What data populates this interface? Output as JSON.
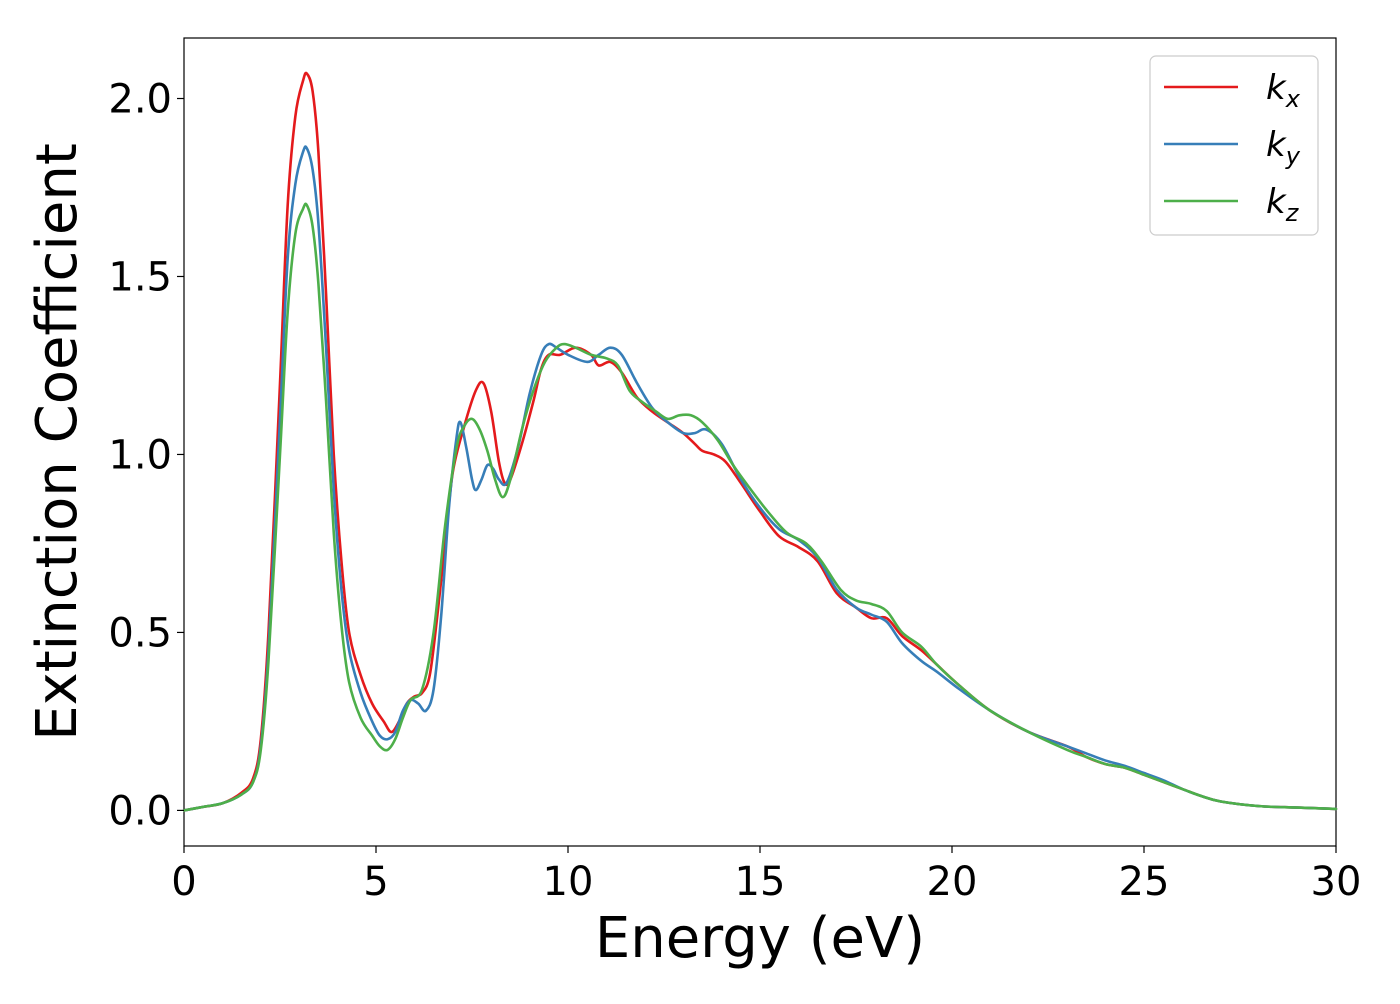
{
  "chart_data": {
    "type": "line",
    "xlabel": "Energy (eV)",
    "ylabel": "Extinction Coefficient",
    "xlim": [
      0,
      30
    ],
    "ylim": [
      -0.1,
      2.17
    ],
    "xticks": [
      0,
      5,
      10,
      15,
      20,
      25,
      30
    ],
    "xtick_labels": [
      "0",
      "5",
      "10",
      "15",
      "20",
      "25",
      "30"
    ],
    "yticks": [
      0.0,
      0.5,
      1.0,
      1.5,
      2.0
    ],
    "ytick_labels": [
      "0.0",
      "0.5",
      "1.0",
      "1.5",
      "2.0"
    ],
    "grid": false,
    "legend_position": "top-right",
    "series": [
      {
        "name": "k_x",
        "legend_base": "k",
        "legend_sub": "x",
        "color": "#e41a1c",
        "points": [
          [
            0,
            0
          ],
          [
            0.5,
            0.01
          ],
          [
            1,
            0.02
          ],
          [
            1.5,
            0.05
          ],
          [
            1.8,
            0.09
          ],
          [
            2.0,
            0.2
          ],
          [
            2.2,
            0.5
          ],
          [
            2.5,
            1.2
          ],
          [
            2.7,
            1.7
          ],
          [
            2.9,
            1.95
          ],
          [
            3.1,
            2.05
          ],
          [
            3.2,
            2.07
          ],
          [
            3.35,
            2.02
          ],
          [
            3.5,
            1.85
          ],
          [
            3.7,
            1.45
          ],
          [
            3.9,
            1.0
          ],
          [
            4.1,
            0.7
          ],
          [
            4.3,
            0.5
          ],
          [
            4.6,
            0.38
          ],
          [
            4.9,
            0.3
          ],
          [
            5.2,
            0.25
          ],
          [
            5.4,
            0.22
          ],
          [
            5.6,
            0.25
          ],
          [
            5.8,
            0.3
          ],
          [
            6.0,
            0.32
          ],
          [
            6.2,
            0.33
          ],
          [
            6.4,
            0.38
          ],
          [
            6.6,
            0.55
          ],
          [
            6.8,
            0.75
          ],
          [
            7.0,
            0.95
          ],
          [
            7.3,
            1.08
          ],
          [
            7.6,
            1.18
          ],
          [
            7.8,
            1.2
          ],
          [
            8.0,
            1.12
          ],
          [
            8.2,
            0.98
          ],
          [
            8.35,
            0.92
          ],
          [
            8.5,
            0.93
          ],
          [
            8.8,
            1.03
          ],
          [
            9.1,
            1.15
          ],
          [
            9.3,
            1.24
          ],
          [
            9.5,
            1.28
          ],
          [
            9.8,
            1.28
          ],
          [
            10.2,
            1.3
          ],
          [
            10.6,
            1.28
          ],
          [
            10.8,
            1.25
          ],
          [
            11.1,
            1.26
          ],
          [
            11.4,
            1.23
          ],
          [
            11.8,
            1.16
          ],
          [
            12.2,
            1.12
          ],
          [
            12.6,
            1.09
          ],
          [
            13.0,
            1.06
          ],
          [
            13.3,
            1.03
          ],
          [
            13.5,
            1.01
          ],
          [
            13.8,
            1.0
          ],
          [
            14.1,
            0.98
          ],
          [
            14.5,
            0.92
          ],
          [
            15.0,
            0.84
          ],
          [
            15.5,
            0.77
          ],
          [
            16.0,
            0.74
          ],
          [
            16.5,
            0.7
          ],
          [
            17.0,
            0.61
          ],
          [
            17.5,
            0.57
          ],
          [
            17.9,
            0.54
          ],
          [
            18.3,
            0.54
          ],
          [
            18.7,
            0.49
          ],
          [
            19.2,
            0.45
          ],
          [
            19.6,
            0.41
          ],
          [
            20.2,
            0.35
          ],
          [
            21.0,
            0.28
          ],
          [
            22.0,
            0.22
          ],
          [
            23.0,
            0.18
          ],
          [
            23.5,
            0.15
          ],
          [
            24.0,
            0.13
          ],
          [
            24.5,
            0.12
          ],
          [
            25.0,
            0.1
          ],
          [
            25.5,
            0.08
          ],
          [
            26.0,
            0.06
          ],
          [
            26.5,
            0.04
          ],
          [
            27.0,
            0.025
          ],
          [
            28.0,
            0.012
          ],
          [
            29.0,
            0.008
          ],
          [
            30.0,
            0.004
          ]
        ]
      },
      {
        "name": "k_y",
        "legend_base": "k",
        "legend_sub": "y",
        "color": "#377eb8",
        "points": [
          [
            0,
            0
          ],
          [
            0.5,
            0.01
          ],
          [
            1,
            0.02
          ],
          [
            1.5,
            0.045
          ],
          [
            1.8,
            0.08
          ],
          [
            2.0,
            0.18
          ],
          [
            2.2,
            0.45
          ],
          [
            2.5,
            1.1
          ],
          [
            2.7,
            1.55
          ],
          [
            2.9,
            1.76
          ],
          [
            3.1,
            1.85
          ],
          [
            3.2,
            1.86
          ],
          [
            3.35,
            1.8
          ],
          [
            3.5,
            1.65
          ],
          [
            3.7,
            1.3
          ],
          [
            3.9,
            0.9
          ],
          [
            4.1,
            0.62
          ],
          [
            4.3,
            0.45
          ],
          [
            4.6,
            0.33
          ],
          [
            4.9,
            0.25
          ],
          [
            5.1,
            0.21
          ],
          [
            5.3,
            0.2
          ],
          [
            5.5,
            0.22
          ],
          [
            5.7,
            0.28
          ],
          [
            5.9,
            0.31
          ],
          [
            6.1,
            0.3
          ],
          [
            6.3,
            0.28
          ],
          [
            6.5,
            0.34
          ],
          [
            6.7,
            0.55
          ],
          [
            6.9,
            0.85
          ],
          [
            7.1,
            1.05
          ],
          [
            7.2,
            1.09
          ],
          [
            7.35,
            1.02
          ],
          [
            7.5,
            0.93
          ],
          [
            7.6,
            0.9
          ],
          [
            7.75,
            0.93
          ],
          [
            7.9,
            0.97
          ],
          [
            8.05,
            0.96
          ],
          [
            8.2,
            0.93
          ],
          [
            8.4,
            0.92
          ],
          [
            8.7,
            1.02
          ],
          [
            9.0,
            1.17
          ],
          [
            9.3,
            1.28
          ],
          [
            9.5,
            1.31
          ],
          [
            9.7,
            1.3
          ],
          [
            10.0,
            1.28
          ],
          [
            10.5,
            1.26
          ],
          [
            10.8,
            1.28
          ],
          [
            11.1,
            1.3
          ],
          [
            11.4,
            1.28
          ],
          [
            11.8,
            1.2
          ],
          [
            12.2,
            1.13
          ],
          [
            12.6,
            1.09
          ],
          [
            13.0,
            1.06
          ],
          [
            13.3,
            1.06
          ],
          [
            13.6,
            1.07
          ],
          [
            14.0,
            1.03
          ],
          [
            14.5,
            0.93
          ],
          [
            15.0,
            0.85
          ],
          [
            15.5,
            0.79
          ],
          [
            16.0,
            0.76
          ],
          [
            16.5,
            0.71
          ],
          [
            17.0,
            0.62
          ],
          [
            17.5,
            0.57
          ],
          [
            17.9,
            0.55
          ],
          [
            18.3,
            0.53
          ],
          [
            18.7,
            0.47
          ],
          [
            19.2,
            0.42
          ],
          [
            19.6,
            0.39
          ],
          [
            20.2,
            0.34
          ],
          [
            21.0,
            0.28
          ],
          [
            22.0,
            0.22
          ],
          [
            23.0,
            0.18
          ],
          [
            23.5,
            0.16
          ],
          [
            24.0,
            0.14
          ],
          [
            24.5,
            0.125
          ],
          [
            25.0,
            0.105
          ],
          [
            25.5,
            0.085
          ],
          [
            26.0,
            0.06
          ],
          [
            26.5,
            0.04
          ],
          [
            27.0,
            0.025
          ],
          [
            28.0,
            0.012
          ],
          [
            29.0,
            0.008
          ],
          [
            30.0,
            0.004
          ]
        ]
      },
      {
        "name": "k_z",
        "legend_base": "k",
        "legend_sub": "z",
        "color": "#4daf4a",
        "points": [
          [
            0,
            0
          ],
          [
            0.5,
            0.01
          ],
          [
            1,
            0.02
          ],
          [
            1.5,
            0.045
          ],
          [
            1.8,
            0.08
          ],
          [
            2.0,
            0.17
          ],
          [
            2.2,
            0.42
          ],
          [
            2.5,
            1.0
          ],
          [
            2.7,
            1.4
          ],
          [
            2.9,
            1.62
          ],
          [
            3.1,
            1.69
          ],
          [
            3.2,
            1.7
          ],
          [
            3.35,
            1.64
          ],
          [
            3.5,
            1.48
          ],
          [
            3.7,
            1.15
          ],
          [
            3.9,
            0.78
          ],
          [
            4.1,
            0.52
          ],
          [
            4.3,
            0.36
          ],
          [
            4.6,
            0.26
          ],
          [
            4.9,
            0.21
          ],
          [
            5.1,
            0.18
          ],
          [
            5.3,
            0.17
          ],
          [
            5.5,
            0.2
          ],
          [
            5.7,
            0.26
          ],
          [
            5.9,
            0.31
          ],
          [
            6.2,
            0.34
          ],
          [
            6.5,
            0.5
          ],
          [
            6.8,
            0.8
          ],
          [
            7.1,
            1.02
          ],
          [
            7.3,
            1.08
          ],
          [
            7.5,
            1.1
          ],
          [
            7.7,
            1.07
          ],
          [
            7.9,
            1.01
          ],
          [
            8.1,
            0.93
          ],
          [
            8.3,
            0.88
          ],
          [
            8.5,
            0.93
          ],
          [
            8.8,
            1.07
          ],
          [
            9.1,
            1.18
          ],
          [
            9.4,
            1.26
          ],
          [
            9.7,
            1.3
          ],
          [
            9.9,
            1.31
          ],
          [
            10.2,
            1.3
          ],
          [
            10.6,
            1.28
          ],
          [
            11.0,
            1.27
          ],
          [
            11.3,
            1.25
          ],
          [
            11.6,
            1.18
          ],
          [
            11.9,
            1.15
          ],
          [
            12.3,
            1.12
          ],
          [
            12.6,
            1.1
          ],
          [
            12.9,
            1.11
          ],
          [
            13.2,
            1.11
          ],
          [
            13.5,
            1.09
          ],
          [
            13.9,
            1.04
          ],
          [
            14.3,
            0.97
          ],
          [
            14.7,
            0.91
          ],
          [
            15.2,
            0.84
          ],
          [
            15.7,
            0.78
          ],
          [
            16.2,
            0.75
          ],
          [
            16.6,
            0.7
          ],
          [
            17.1,
            0.62
          ],
          [
            17.5,
            0.59
          ],
          [
            17.9,
            0.58
          ],
          [
            18.3,
            0.56
          ],
          [
            18.7,
            0.5
          ],
          [
            19.2,
            0.46
          ],
          [
            19.6,
            0.41
          ],
          [
            20.2,
            0.35
          ],
          [
            21.0,
            0.28
          ],
          [
            22.0,
            0.22
          ],
          [
            23.0,
            0.17
          ],
          [
            23.5,
            0.15
          ],
          [
            24.0,
            0.13
          ],
          [
            24.5,
            0.12
          ],
          [
            25.0,
            0.1
          ],
          [
            25.5,
            0.08
          ],
          [
            26.0,
            0.06
          ],
          [
            26.5,
            0.04
          ],
          [
            27.0,
            0.025
          ],
          [
            28.0,
            0.012
          ],
          [
            29.0,
            0.008
          ],
          [
            30.0,
            0.004
          ]
        ]
      }
    ]
  }
}
